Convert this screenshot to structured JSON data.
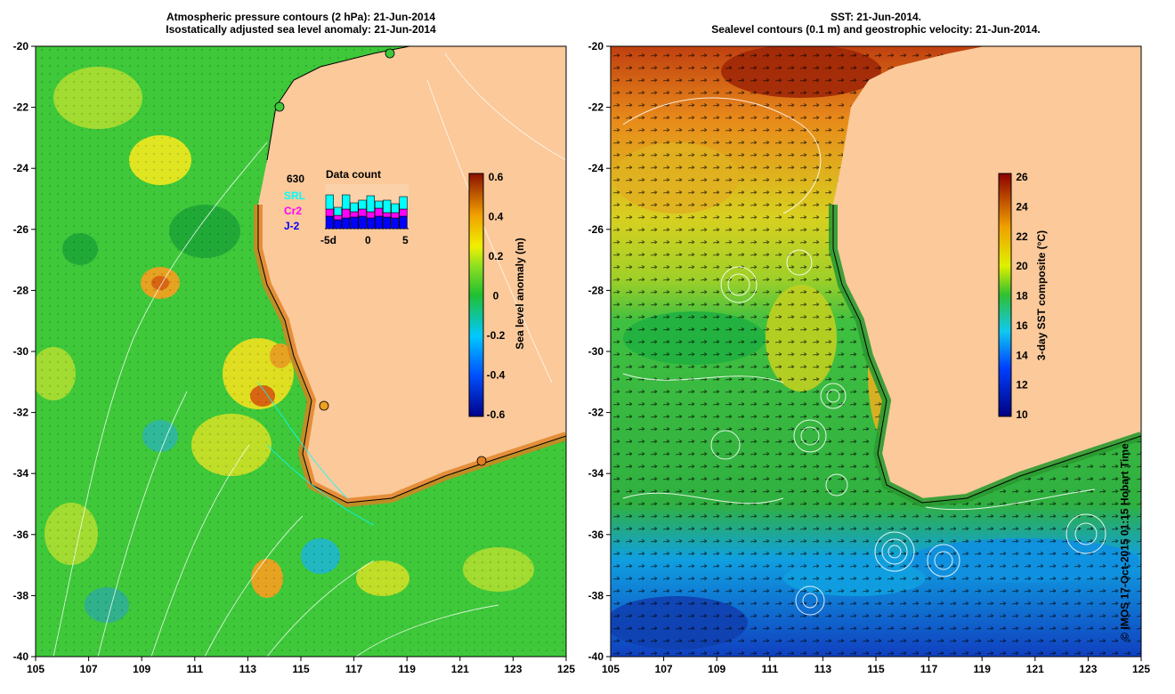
{
  "left_panel": {
    "title_line1": "Atmospheric pressure contours (2 hPa): 21-Jun-2014",
    "title_line2": "Isostatically adjusted sea level anomaly: 21-Jun-2014",
    "colorbar_label": "Sea level anomaly (m)",
    "colorbar_ticks": [
      "0.6",
      "0.4",
      "0.2",
      "0",
      "-0.2",
      "-0.4",
      "-0.6"
    ],
    "data_count": {
      "title": "Data count",
      "total": "630",
      "satellites": [
        "SRL",
        "Cr2",
        "J-2"
      ],
      "satellite_colors": [
        "#00ffff",
        "#ff00ff",
        "#0000ff"
      ],
      "axis_labels": [
        "-5d",
        "0",
        "5"
      ]
    }
  },
  "right_panel": {
    "title_line1": "SST: 21-Jun-2014.",
    "title_line2": "Sealevel contours (0.1 m) and geostrophic velocity: 21-Jun-2014.",
    "colorbar_label": "3-day SST composite (°C)",
    "colorbar_ticks": [
      "26",
      "24",
      "22",
      "20",
      "18",
      "16",
      "14",
      "12",
      "10"
    ]
  },
  "axes": {
    "x_ticks": [
      "105",
      "107",
      "109",
      "111",
      "113",
      "115",
      "117",
      "119",
      "121",
      "123",
      "125"
    ],
    "y_ticks": [
      "-20",
      "-22",
      "-24",
      "-26",
      "-28",
      "-30",
      "-32",
      "-34",
      "-36",
      "-38",
      "-40"
    ]
  },
  "credit": "© IMOS 17-Oct-2015 01:15 Hobart Time",
  "colors": {
    "land": "#fbc99a",
    "ssla_green": "#3ec83a",
    "sst_blue": "#1e90ff",
    "sst_green": "#4cc43c",
    "sst_orange": "#e88a1a"
  }
}
